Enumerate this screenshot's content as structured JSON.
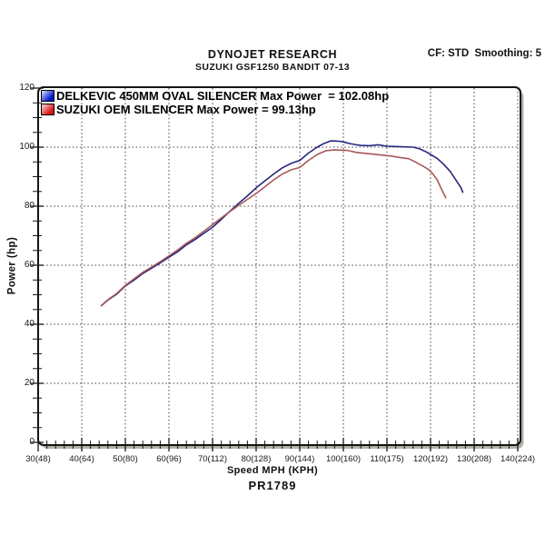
{
  "header": {
    "title": "DYNOJET RESEARCH",
    "subtitle": "SUZUKI GSF1250 BANDIT 07-13",
    "settings": "CF: STD  Smoothing: 5"
  },
  "legend": [
    {
      "name": "delkevic-swatch",
      "label": "DELKEVIC 450MM OVAL SILENCER Max Power  = 102.08hp",
      "swatch_from": "#dbe4ff",
      "swatch_to": "#0016c8"
    },
    {
      "name": "oem-swatch",
      "label": "SUZUKI OEM SILENCER Max Power = 99.13hp",
      "swatch_from": "#ffdcdc",
      "swatch_to": "#d41515"
    }
  ],
  "footer": {
    "ref": "PR1789"
  },
  "chart_data": {
    "type": "line",
    "title": "DYNOJET RESEARCH",
    "subtitle": "SUZUKI GSF1250 BANDIT 07-13",
    "xlabel": "Speed MPH (KPH)",
    "ylabel": "Power (hp)",
    "xlim": [
      30,
      140.6
    ],
    "ylim": [
      0,
      120
    ],
    "grid": "dashed at major ticks, on",
    "legend_position": "top-left inside plot",
    "x_ticks": [
      {
        "mph": 30,
        "label": "30(48)"
      },
      {
        "mph": 40,
        "label": "40(64)"
      },
      {
        "mph": 50,
        "label": "50(80)"
      },
      {
        "mph": 60,
        "label": "60(96)"
      },
      {
        "mph": 70,
        "label": "70(112)"
      },
      {
        "mph": 80,
        "label": "80(128)"
      },
      {
        "mph": 90,
        "label": "90(144)"
      },
      {
        "mph": 100,
        "label": "100(160)"
      },
      {
        "mph": 110,
        "label": "110(175)"
      },
      {
        "mph": 120,
        "label": "120(192)"
      },
      {
        "mph": 130,
        "label": "130(208)"
      },
      {
        "mph": 140,
        "label": "140(224)"
      }
    ],
    "x_minor_step": 2,
    "y_ticks": [
      0,
      20,
      40,
      60,
      80,
      100,
      120
    ],
    "y_minor_step": 5,
    "series": [
      {
        "name": "DELKEVIC 450MM OVAL SILENCER",
        "max_power_hp": 102.08,
        "color": "#26267e",
        "points": [
          [
            44.5,
            46.3
          ],
          [
            46,
            48.2
          ],
          [
            48,
            50.2
          ],
          [
            50,
            53.0
          ],
          [
            52,
            55.0
          ],
          [
            54,
            57.2
          ],
          [
            56,
            59.0
          ],
          [
            58,
            60.8
          ],
          [
            60,
            62.7
          ],
          [
            62,
            64.6
          ],
          [
            64,
            66.9
          ],
          [
            66,
            68.7
          ],
          [
            68,
            70.8
          ],
          [
            70,
            72.9
          ],
          [
            72,
            75.5
          ],
          [
            74,
            78.3
          ],
          [
            76,
            81.0
          ],
          [
            78,
            83.5
          ],
          [
            80,
            86.2
          ],
          [
            82,
            88.6
          ],
          [
            84,
            90.9
          ],
          [
            86,
            93.0
          ],
          [
            88,
            94.5
          ],
          [
            90,
            95.5
          ],
          [
            92,
            98.0
          ],
          [
            94,
            100.0
          ],
          [
            95.5,
            101.2
          ],
          [
            97,
            102.1
          ],
          [
            98,
            102.1
          ],
          [
            99,
            102.0
          ],
          [
            100,
            101.8
          ],
          [
            101.5,
            101.2
          ],
          [
            103,
            100.8
          ],
          [
            104,
            100.6
          ],
          [
            106,
            100.5
          ],
          [
            108,
            100.8
          ],
          [
            110,
            100.3
          ],
          [
            112,
            100.2
          ],
          [
            114,
            100.1
          ],
          [
            116,
            100.0
          ],
          [
            117.5,
            99.4
          ],
          [
            119,
            98.4
          ],
          [
            120,
            97.5
          ],
          [
            121.5,
            96.2
          ],
          [
            123,
            94.2
          ],
          [
            124.5,
            91.8
          ],
          [
            126,
            88.5
          ],
          [
            127,
            86.2
          ],
          [
            127.4,
            84.7
          ]
        ]
      },
      {
        "name": "SUZUKI OEM SILENCER",
        "max_power_hp": 99.13,
        "color": "#a65858",
        "points": [
          [
            44.5,
            46.3
          ],
          [
            46,
            48.3
          ],
          [
            48,
            50.4
          ],
          [
            50,
            53.2
          ],
          [
            52,
            55.4
          ],
          [
            54,
            57.6
          ],
          [
            56,
            59.4
          ],
          [
            58,
            61.2
          ],
          [
            60,
            63.2
          ],
          [
            62,
            65.2
          ],
          [
            64,
            67.4
          ],
          [
            66,
            69.3
          ],
          [
            68,
            71.5
          ],
          [
            70,
            73.8
          ],
          [
            72,
            76.0
          ],
          [
            74,
            78.2
          ],
          [
            76,
            80.3
          ],
          [
            78,
            82.3
          ],
          [
            80,
            84.3
          ],
          [
            82,
            86.6
          ],
          [
            84,
            88.9
          ],
          [
            86,
            90.9
          ],
          [
            88,
            92.3
          ],
          [
            90,
            93.1
          ],
          [
            92,
            95.5
          ],
          [
            94,
            97.5
          ],
          [
            96,
            98.8
          ],
          [
            98,
            99.1
          ],
          [
            99.5,
            99.0
          ],
          [
            101,
            98.9
          ],
          [
            103,
            98.2
          ],
          [
            105,
            97.9
          ],
          [
            107,
            97.6
          ],
          [
            109,
            97.3
          ],
          [
            111,
            97.0
          ],
          [
            113,
            96.5
          ],
          [
            115,
            96.1
          ],
          [
            116.5,
            95.0
          ],
          [
            118,
            93.8
          ],
          [
            119.5,
            92.5
          ],
          [
            120.5,
            91.0
          ],
          [
            121.5,
            89.0
          ],
          [
            122.5,
            85.8
          ],
          [
            123.5,
            82.9
          ]
        ]
      }
    ],
    "footer_ref": "PR1789"
  }
}
